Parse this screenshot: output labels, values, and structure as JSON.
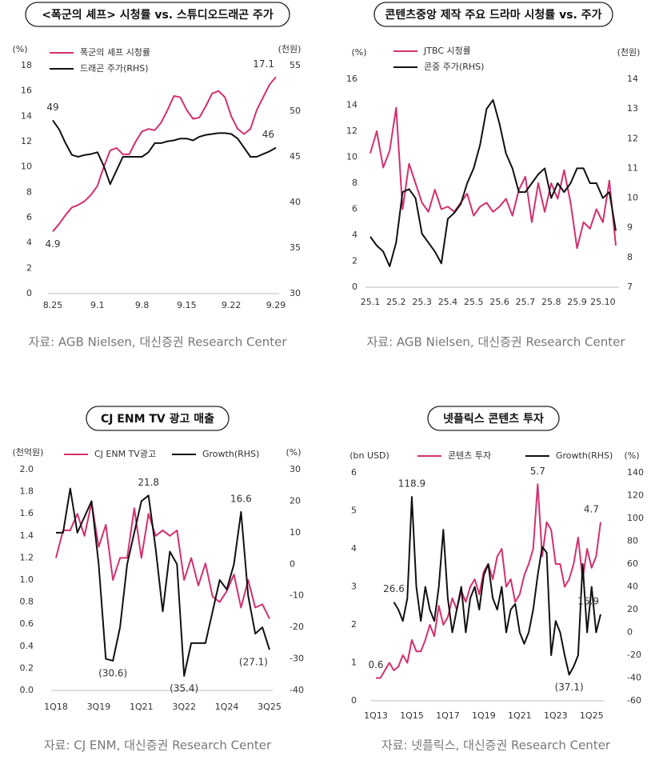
{
  "chart_data": [
    {
      "type": "line",
      "title": "<폭군의 셰프> 시청률 vs. 스튜디오드래곤 주가",
      "source": "자료: AGB Nielsen, 대신증권 Research Center",
      "ylabel": "(%)",
      "y2label": "(천원)",
      "legend": "upper left",
      "categories": [
        "8.25",
        null,
        null,
        null,
        null,
        null,
        null,
        "9.1",
        null,
        null,
        null,
        null,
        null,
        null,
        "9.8",
        null,
        null,
        null,
        null,
        null,
        null,
        "9.15",
        null,
        null,
        null,
        null,
        null,
        null,
        "9.22",
        null,
        null,
        null,
        null,
        null,
        null,
        "9.29"
      ],
      "ylim": [
        0,
        18
      ],
      "yticks": [
        0,
        2,
        4,
        6,
        8,
        10,
        12,
        14,
        16,
        18
      ],
      "y2lim": [
        30,
        55
      ],
      "y2ticks": [
        30,
        35,
        40,
        45,
        50,
        55
      ],
      "series": [
        {
          "name": "폭군의 셰프 시청률",
          "color": "#d2306f",
          "values": [
            4.9,
            5.5,
            6.2,
            6.8,
            7.0,
            7.3,
            7.8,
            8.5,
            10,
            11.3,
            11.5,
            11,
            11,
            12,
            12.8,
            13,
            12.9,
            13.5,
            14.5,
            15.6,
            15.5,
            14.5,
            13.8,
            13.9,
            14.8,
            15.8,
            16,
            15.5,
            14,
            13,
            12.6,
            13,
            14.5,
            15.5,
            16.5,
            17.1
          ],
          "value_labels": [
            "4.9",
            null,
            null,
            null,
            null,
            null,
            null,
            null,
            null,
            null,
            null,
            null,
            null,
            null,
            null,
            null,
            null,
            null,
            null,
            null,
            null,
            null,
            null,
            null,
            null,
            null,
            null,
            null,
            null,
            null,
            null,
            null,
            null,
            null,
            null,
            "17.1"
          ]
        },
        {
          "name": "드래곤 주가(RHS)",
          "color": "#111111",
          "axis": "y2",
          "values": [
            49,
            48,
            46.5,
            45.2,
            45,
            45.2,
            45.3,
            45.5,
            44,
            42,
            43.5,
            45,
            45,
            45,
            45,
            45.5,
            46.5,
            46.5,
            46.7,
            46.8,
            47,
            47,
            46.8,
            47.2,
            47.4,
            47.5,
            47.6,
            47.6,
            47.5,
            47,
            46,
            45,
            45,
            45.3,
            45.6,
            46
          ],
          "value_labels": [
            "49",
            null,
            null,
            null,
            null,
            null,
            null,
            null,
            null,
            null,
            null,
            null,
            null,
            null,
            null,
            null,
            null,
            null,
            null,
            null,
            null,
            null,
            null,
            null,
            null,
            null,
            null,
            null,
            null,
            null,
            null,
            null,
            null,
            null,
            null,
            "46"
          ]
        }
      ]
    },
    {
      "type": "line",
      "title": "콘텐츠중앙 제작 주요 드라마 시청률 vs. 주가",
      "source": "자료: AGB Nielsen, 대신증권 Research Center",
      "ylabel": "(%)",
      "y2label": "(천원)",
      "legend": "upper left",
      "categories": [
        "25.1",
        null,
        null,
        null,
        "25.2",
        null,
        null,
        null,
        "25.3",
        null,
        null,
        null,
        "25.4",
        null,
        null,
        null,
        "25.5",
        null,
        null,
        null,
        "25.6",
        null,
        null,
        null,
        "25.7",
        null,
        null,
        null,
        "25.8",
        null,
        null,
        null,
        "25.9",
        null,
        null,
        null,
        "25.10",
        null,
        null
      ],
      "ylim": [
        0,
        16
      ],
      "yticks": [
        0,
        2,
        4,
        6,
        8,
        10,
        12,
        14,
        16
      ],
      "y2lim": [
        7,
        14
      ],
      "y2ticks": [
        7,
        8,
        9,
        10,
        11,
        12,
        13,
        14
      ],
      "series": [
        {
          "name": "JTBC 시청률",
          "color": "#d2306f",
          "values": [
            10.3,
            12,
            9.2,
            10.5,
            13.8,
            6,
            9.5,
            8,
            6.5,
            5.8,
            7.5,
            6,
            6.2,
            5.8,
            6.5,
            7.2,
            5.5,
            6.2,
            6.5,
            5.8,
            6.2,
            6.8,
            5.5,
            7.5,
            8.5,
            5,
            8,
            5.8,
            8,
            6.8,
            9,
            6.5,
            3,
            5,
            4.5,
            6,
            5,
            8.2,
            3.2
          ]
        },
        {
          "name": "콘중 주가(RHS)",
          "color": "#111111",
          "axis": "y2",
          "values": [
            8.7,
            8.4,
            8.2,
            7.7,
            8.5,
            10.2,
            10.3,
            10,
            8.8,
            8.5,
            8.2,
            7.8,
            9.3,
            9.5,
            9.8,
            10.5,
            11,
            11.8,
            13,
            13.3,
            12.5,
            11.5,
            11,
            10.2,
            10.2,
            10.5,
            10.8,
            11,
            10,
            10.5,
            10.2,
            10.5,
            11,
            11,
            10.5,
            10.5,
            10,
            10.2,
            8.9
          ]
        }
      ]
    },
    {
      "type": "line",
      "title": "CJ ENM TV 광고 매출",
      "source": "자료: CJ ENM, 대신증권 Research Center",
      "ylabel": "(천억원)",
      "y2label": "(%)",
      "legend": "upper center",
      "negative_label_color": "#d2306f",
      "categories": [
        "1Q18",
        null,
        null,
        null,
        null,
        null,
        "3Q19",
        null,
        null,
        null,
        null,
        null,
        "1Q21",
        null,
        null,
        null,
        null,
        null,
        "3Q22",
        null,
        null,
        null,
        null,
        null,
        "1Q24",
        null,
        null,
        null,
        null,
        null,
        "3Q25"
      ],
      "ylim": [
        0,
        2
      ],
      "yticks": [
        {
          "value": 0,
          "label": "0.0"
        },
        0.2,
        0.4,
        0.6,
        0.8,
        {
          "value": 1,
          "label": "1.0"
        },
        1.2,
        1.4,
        1.6,
        1.8,
        {
          "value": 2,
          "label": "2.0"
        }
      ],
      "y2lim": [
        -40,
        30
      ],
      "y2ticks": [
        -40,
        -30,
        -20,
        -10,
        0,
        10,
        20,
        30
      ],
      "series": [
        {
          "name": "CJ ENM TV광고",
          "color": "#d2306f",
          "values": [
            1.2,
            1.45,
            1.45,
            1.6,
            1.4,
            1.7,
            1.3,
            1.5,
            1.0,
            1.2,
            1.2,
            1.65,
            1.2,
            1.6,
            1.4,
            1.45,
            1.4,
            1.45,
            1.0,
            1.2,
            0.95,
            1.15,
            0.85,
            0.8,
            0.9,
            1.05,
            0.75,
            1.0,
            0.75,
            0.78,
            0.65
          ]
        },
        {
          "name": "Growth(RHS)",
          "color": "#111111",
          "axis": "y2",
          "values": [
            10,
            10,
            24,
            10,
            15,
            20,
            0,
            -30,
            -30.6,
            -20,
            0,
            10,
            20,
            21.8,
            5,
            -15,
            4,
            0,
            -35.4,
            -25,
            -25,
            -25,
            -15,
            -5,
            -8,
            0,
            16.6,
            -10,
            -22,
            -20,
            -27.1
          ],
          "value_labels": [
            null,
            null,
            null,
            null,
            null,
            null,
            null,
            null,
            "(30.6)",
            null,
            null,
            null,
            null,
            "21.8",
            null,
            null,
            null,
            null,
            "(35.4)",
            null,
            null,
            null,
            null,
            null,
            null,
            null,
            "16.6",
            null,
            null,
            null,
            "(27.1)"
          ]
        }
      ]
    },
    {
      "type": "line",
      "title": "넷플릭스 콘텐츠 투자",
      "source": "자료: 넷플릭스, 대신증권 Research Center",
      "ylabel": "(bn USD)",
      "y2label": "(%)",
      "legend": "upper center",
      "negative_label_color": "#d2306f",
      "categories": [
        "1Q13",
        null,
        null,
        null,
        null,
        null,
        null,
        null,
        "1Q15",
        null,
        null,
        null,
        null,
        null,
        null,
        null,
        "1Q17",
        null,
        null,
        null,
        null,
        null,
        null,
        null,
        "1Q19",
        null,
        null,
        null,
        null,
        null,
        null,
        null,
        "1Q21",
        null,
        null,
        null,
        null,
        null,
        null,
        null,
        "1Q23",
        null,
        null,
        null,
        null,
        null,
        null,
        null,
        "1Q25",
        null,
        null
      ],
      "ylim": [
        0,
        6
      ],
      "yticks": [
        0,
        1,
        2,
        3,
        4,
        5,
        6
      ],
      "y2lim": [
        -60,
        140
      ],
      "y2ticks": [
        -60,
        -40,
        -20,
        0,
        20,
        40,
        60,
        80,
        100,
        120,
        140
      ],
      "series": [
        {
          "name": "콘텐츠 투자",
          "color": "#d2306f",
          "values": [
            0.6,
            0.6,
            0.8,
            1.0,
            0.8,
            0.9,
            1.2,
            1.0,
            1.6,
            1.3,
            1.3,
            1.6,
            2.0,
            1.7,
            2.5,
            2.0,
            2.2,
            2.7,
            2.4,
            2.9,
            2.6,
            3.0,
            3.2,
            2.8,
            3.4,
            3.6,
            3.2,
            3.8,
            4.0,
            3.0,
            3.2,
            2.6,
            2.8,
            3.3,
            3.6,
            4.0,
            5.7,
            3.8,
            4.7,
            4.5,
            3.6,
            3.6,
            3.0,
            3.2,
            3.6,
            4.3,
            3.2,
            4.0,
            3.5,
            3.8,
            4.7
          ],
          "value_labels": [
            "0.6",
            null,
            null,
            null,
            null,
            null,
            null,
            null,
            null,
            null,
            null,
            null,
            null,
            null,
            null,
            null,
            null,
            null,
            null,
            null,
            null,
            null,
            null,
            null,
            null,
            null,
            null,
            null,
            null,
            null,
            null,
            null,
            null,
            null,
            null,
            null,
            "5.7",
            null,
            null,
            null,
            null,
            null,
            null,
            null,
            null,
            null,
            null,
            null,
            null,
            null,
            "4.7"
          ]
        },
        {
          "name": "Growth(RHS)",
          "color": "#111111",
          "axis": "y2",
          "values": [
            null,
            null,
            null,
            null,
            26.6,
            20,
            10,
            30,
            118.9,
            40,
            10,
            40,
            20,
            10,
            40,
            90,
            30,
            0,
            20,
            40,
            0,
            30,
            40,
            20,
            50,
            60,
            30,
            20,
            40,
            0,
            20,
            25,
            0,
            -10,
            0,
            20,
            50,
            75,
            70,
            -20,
            10,
            0,
            -20,
            -37.1,
            -30,
            -20,
            60,
            0,
            40,
            0,
            15.9
          ],
          "value_labels": [
            null,
            null,
            null,
            null,
            "26.6",
            null,
            null,
            null,
            "118.9",
            null,
            null,
            null,
            null,
            null,
            null,
            null,
            null,
            null,
            null,
            null,
            null,
            null,
            null,
            null,
            null,
            null,
            null,
            null,
            null,
            null,
            null,
            null,
            null,
            null,
            null,
            null,
            null,
            null,
            null,
            null,
            null,
            null,
            null,
            "(37.1)",
            null,
            null,
            null,
            null,
            null,
            null,
            "15.9"
          ]
        }
      ]
    }
  ]
}
